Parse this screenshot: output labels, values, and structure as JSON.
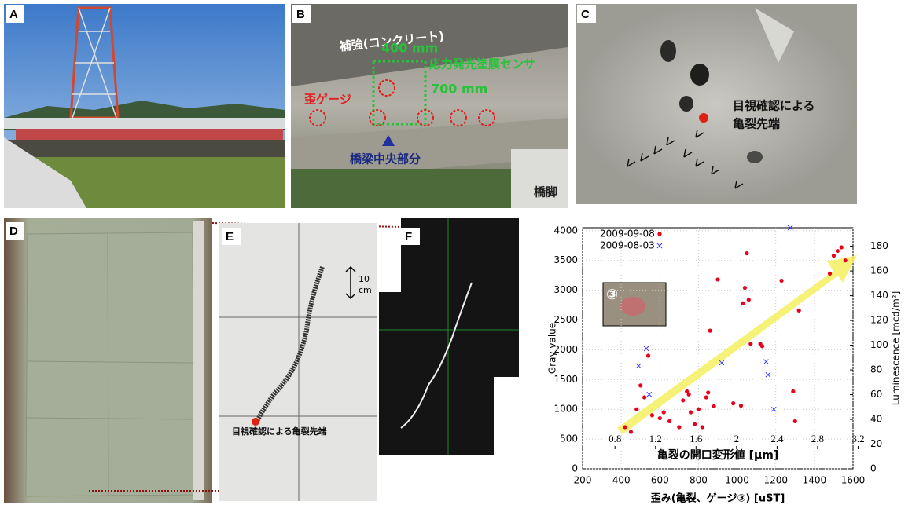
{
  "panels": {
    "a": {
      "label": "A"
    },
    "b": {
      "label": "B",
      "reinforcement": "補強(コンクリート)",
      "width": "400 mm",
      "sensor": "応力発光塗膜センサ",
      "height": "700 mm",
      "gauge": "歪ゲージ",
      "center": "橋梁中央部分",
      "pier": "橋脚"
    },
    "c": {
      "label": "C",
      "note_line1": "目視確認による",
      "note_line2": "亀裂先端"
    },
    "d": {
      "label": "D"
    },
    "e": {
      "label": "E",
      "scale_value": "10",
      "scale_unit": "cm",
      "note": "目視確認による亀裂先端"
    },
    "f": {
      "label": "F"
    }
  },
  "chart_data": {
    "type": "scatter",
    "x_label": "歪み(亀裂、ゲージ③) [uST]",
    "y_label": "Gray value",
    "y2_label": "Luminescence [mcd/m²]",
    "x2_label": "亀裂の開口変形値 [μm]",
    "inset_label": "③",
    "xlim": [
      200,
      1600
    ],
    "xticks": [
      200,
      400,
      600,
      800,
      1000,
      1200,
      1400,
      1600
    ],
    "ylim": [
      0,
      4050
    ],
    "yticks": [
      0,
      500,
      1000,
      1500,
      2000,
      2500,
      3000,
      3500,
      4000
    ],
    "y2lim": [
      0,
      195
    ],
    "y2ticks": [
      0,
      20,
      40,
      60,
      80,
      100,
      120,
      140,
      160,
      180
    ],
    "x2lim": [
      0.48,
      3.15
    ],
    "x2ticks": [
      0.8,
      1.2,
      1.6,
      2.0,
      2.4,
      2.8,
      3.2
    ],
    "grid": true,
    "legend": "upper left",
    "series": [
      {
        "name": "2009-09-08",
        "color": "#e8001c",
        "marker": "dot",
        "x": [
          420,
          450,
          480,
          500,
          520,
          540,
          560,
          600,
          620,
          650,
          700,
          720,
          740,
          750,
          760,
          780,
          800,
          820,
          840,
          850,
          860,
          880,
          900,
          980,
          1020,
          1030,
          1040,
          1050,
          1060,
          1070,
          1120,
          1130,
          1230,
          1290,
          1300,
          1320,
          1500,
          1520,
          1540,
          1560,
          1480
        ],
        "values": [
          700,
          620,
          1000,
          1400,
          1200,
          1900,
          900,
          850,
          950,
          800,
          700,
          1150,
          1300,
          1250,
          950,
          750,
          1000,
          700,
          1200,
          1280,
          2320,
          1050,
          3180,
          1100,
          1060,
          2780,
          3040,
          3620,
          2840,
          2100,
          2100,
          2060,
          3160,
          1300,
          800,
          2660,
          3580,
          3660,
          3720,
          3500,
          3280
        ]
      },
      {
        "name": "2009-08-03",
        "color": "#3a3aff",
        "marker": "x",
        "x": [
          490,
          530,
          545,
          920,
          1150,
          1160,
          1190,
          1275
        ],
        "values": [
          1730,
          2020,
          1250,
          1780,
          1800,
          1580,
          1000,
          4050
        ]
      }
    ]
  }
}
